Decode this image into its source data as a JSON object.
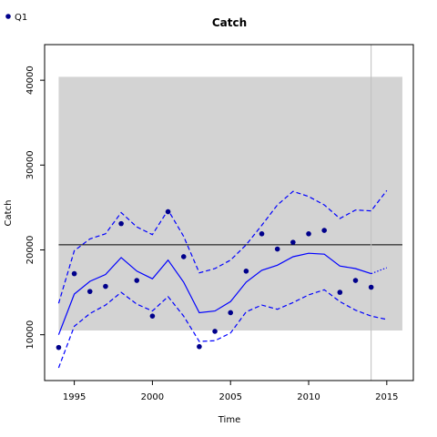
{
  "chart_data": {
    "type": "line",
    "title": "Catch",
    "xlabel": "Time",
    "ylabel": "Catch",
    "xlim": [
      1993.1,
      2016.7
    ],
    "ylim": [
      4600,
      44200
    ],
    "xticks": [
      1995,
      2000,
      2005,
      2010,
      2015
    ],
    "yticks": [
      10000,
      20000,
      30000,
      40000
    ],
    "grid": false,
    "legend": {
      "position": "top-left",
      "entries": [
        "Q1"
      ]
    },
    "colors": {
      "series": "#0000ff",
      "points": "#00008b",
      "band": "#d3d3d3",
      "reference": "#000000",
      "vline": "#bebebe"
    },
    "band": {
      "x": [
        1994,
        2016
      ],
      "y": [
        10500,
        40400
      ]
    },
    "reference_line": 20600,
    "vertical_line_x": 2014,
    "series": [
      {
        "name": "Q1",
        "style": "points",
        "x": [
          1994,
          1995,
          1996,
          1997,
          1998,
          1999,
          2000,
          2001,
          2002,
          2003,
          2004,
          2005,
          2006,
          2007,
          2008,
          2009,
          2010,
          2011,
          2012,
          2013,
          2014
        ],
        "y": [
          8500,
          17200,
          15100,
          15700,
          23100,
          16400,
          12200,
          24500,
          19200,
          8600,
          10400,
          12600,
          17500,
          21900,
          20100,
          20900,
          21900,
          22300,
          15000,
          16400,
          15600
        ]
      },
      {
        "style": "solid",
        "x": [
          1994,
          1995,
          1996,
          1997,
          1998,
          1999,
          2000,
          2001,
          2002,
          2003,
          2004,
          2005,
          2006,
          2007,
          2008,
          2009,
          2010,
          2011,
          2012,
          2013,
          2014
        ],
        "y": [
          10000,
          14800,
          16300,
          17100,
          19100,
          17500,
          16600,
          18800,
          16200,
          12600,
          12800,
          13900,
          16200,
          17600,
          18200,
          19200,
          19600,
          19500,
          18100,
          17800,
          17200
        ]
      },
      {
        "style": "dotted",
        "x": [
          2014,
          2015
        ],
        "y": [
          17200,
          17900
        ]
      },
      {
        "style": "dashed",
        "x": [
          1994,
          1995,
          1996,
          1997,
          1998,
          1999,
          2000,
          2001,
          2002,
          2003,
          2004,
          2005,
          2006,
          2007,
          2008,
          2009,
          2010,
          2011,
          2012,
          2013,
          2014,
          2015
        ],
        "y": [
          13700,
          19900,
          21300,
          21900,
          24400,
          22700,
          21800,
          24700,
          21600,
          17300,
          17800,
          18800,
          20600,
          22900,
          25300,
          26900,
          26300,
          25300,
          23700,
          24700,
          24600,
          27000
        ]
      },
      {
        "style": "dashed",
        "x": [
          1994,
          1995,
          1996,
          1997,
          1998,
          1999,
          2000,
          2001,
          2002,
          2003,
          2004,
          2005,
          2006,
          2007,
          2008,
          2009,
          2010,
          2011,
          2012,
          2013,
          2014,
          2015
        ],
        "y": [
          6100,
          11000,
          12500,
          13500,
          15000,
          13600,
          12800,
          14500,
          12200,
          9200,
          9300,
          10200,
          12700,
          13500,
          13000,
          13800,
          14700,
          15300,
          13900,
          12900,
          12200,
          11800
        ]
      }
    ]
  }
}
